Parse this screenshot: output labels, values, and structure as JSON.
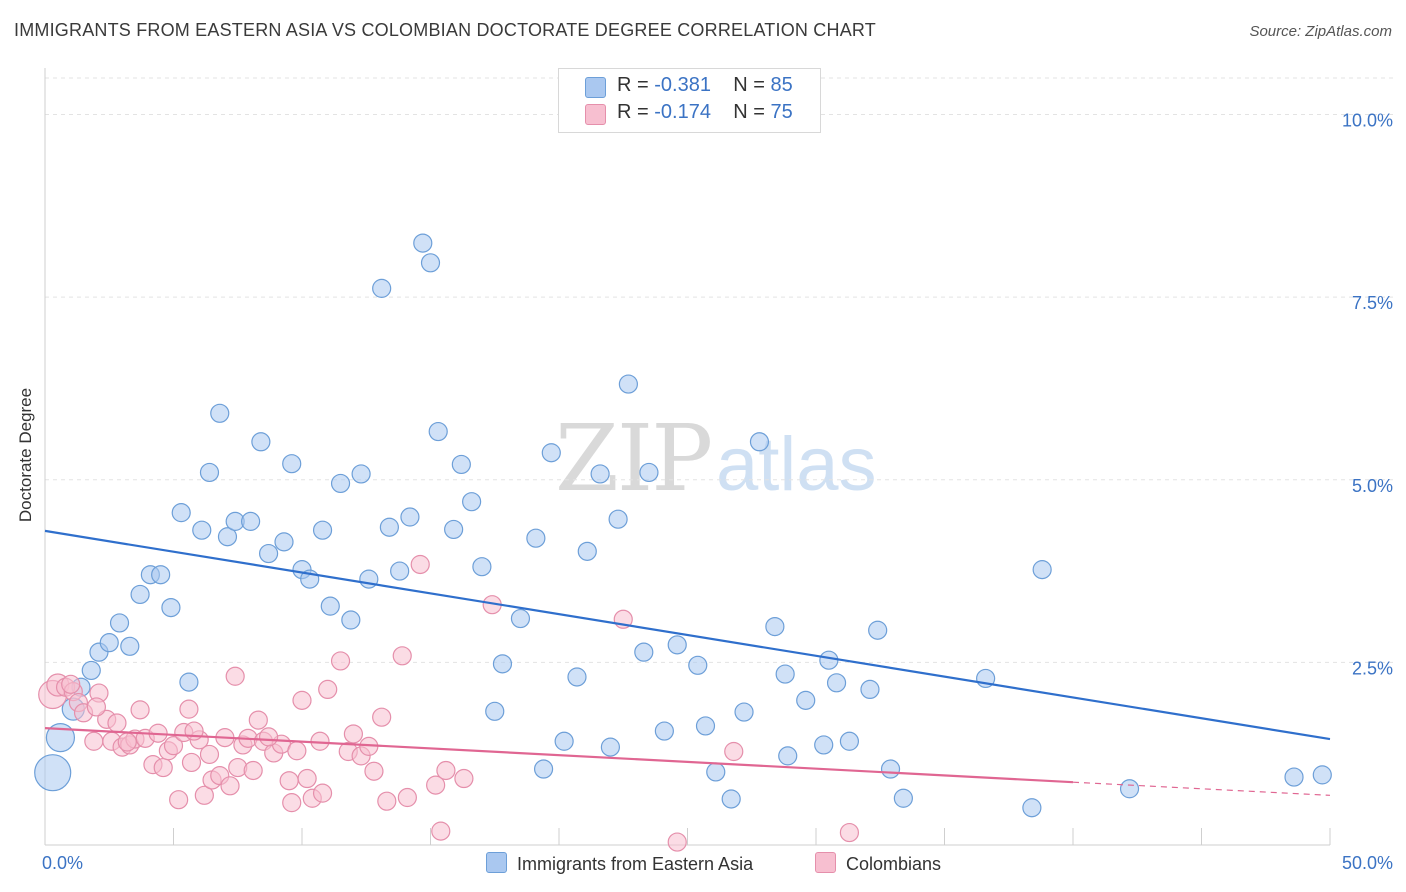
{
  "title": "IMMIGRANTS FROM EASTERN ASIA VS COLOMBIAN DOCTORATE DEGREE CORRELATION CHART",
  "source": "Source: ZipAtlas.com",
  "watermark": {
    "zip": "ZIP",
    "atlas": "atlas"
  },
  "colors": {
    "blue_fill": "#aac8f0",
    "blue_stroke": "#6d9fd8",
    "blue_line": "#2f6fcc",
    "pink_fill": "#f7bfd0",
    "pink_stroke": "#e58fab",
    "pink_line": "#e06692",
    "axis_label": "#3b73c4",
    "grid": "#e3e3e3"
  },
  "legend": {
    "series1": {
      "r_label": "R =",
      "r_value": "-0.381",
      "n_label": "N =",
      "n_value": "85"
    },
    "series2": {
      "r_label": "R =",
      "r_value": "-0.174",
      "n_label": "N =",
      "n_value": "75"
    }
  },
  "bottom_legend": {
    "series1": "Immigrants from Eastern Asia",
    "series2": "Colombians"
  },
  "chart_data": {
    "type": "scatter",
    "title": "IMMIGRANTS FROM EASTERN ASIA VS COLOMBIAN DOCTORATE DEGREE CORRELATION CHART",
    "xlabel": "",
    "ylabel": "Doctorate Degree",
    "xlim": [
      0,
      50
    ],
    "ylim": [
      0,
      10.5
    ],
    "x_tick_labels": [
      {
        "value": 0,
        "label": "0.0%"
      },
      {
        "value": 50,
        "label": "50.0%"
      }
    ],
    "y_tick_labels": [
      {
        "value": 2.5,
        "label": "2.5%"
      },
      {
        "value": 5.0,
        "label": "5.0%"
      },
      {
        "value": 7.5,
        "label": "7.5%"
      },
      {
        "value": 10.0,
        "label": "10.0%"
      }
    ],
    "grid": true,
    "legend_position": "top-center",
    "series": [
      {
        "name": "Immigrants from Eastern Asia",
        "color": "#aac8f0",
        "trend": {
          "x": [
            0,
            50
          ],
          "y": [
            4.3,
            1.45
          ]
        },
        "points": [
          [
            0.3,
            0.99,
            18
          ],
          [
            0.6,
            1.47,
            14
          ],
          [
            1.1,
            1.86,
            11
          ],
          [
            1.4,
            2.16,
            9
          ],
          [
            1.8,
            2.39,
            9
          ],
          [
            2.1,
            2.64,
            9
          ],
          [
            2.5,
            2.77,
            9
          ],
          [
            2.9,
            3.04,
            9
          ],
          [
            3.3,
            2.72,
            9
          ],
          [
            3.7,
            3.43,
            9
          ],
          [
            4.1,
            3.7,
            9
          ],
          [
            4.5,
            3.7,
            9
          ],
          [
            4.9,
            3.25,
            9
          ],
          [
            5.3,
            4.55,
            9
          ],
          [
            5.6,
            2.23,
            9
          ],
          [
            6.1,
            4.31,
            9
          ],
          [
            6.4,
            5.1,
            9
          ],
          [
            6.8,
            5.91,
            9
          ],
          [
            7.1,
            4.22,
            9
          ],
          [
            7.4,
            4.43,
            9
          ],
          [
            8.0,
            4.43,
            9
          ],
          [
            8.4,
            5.52,
            9
          ],
          [
            8.7,
            3.99,
            9
          ],
          [
            9.3,
            4.15,
            9
          ],
          [
            9.6,
            5.22,
            9
          ],
          [
            10.0,
            3.77,
            9
          ],
          [
            10.3,
            3.64,
            9
          ],
          [
            10.8,
            4.31,
            9
          ],
          [
            11.1,
            3.27,
            9
          ],
          [
            11.5,
            4.95,
            9
          ],
          [
            11.9,
            3.08,
            9
          ],
          [
            12.3,
            5.08,
            9
          ],
          [
            12.6,
            3.64,
            9
          ],
          [
            13.1,
            7.62,
            9
          ],
          [
            13.4,
            4.35,
            9
          ],
          [
            13.8,
            3.75,
            9
          ],
          [
            14.2,
            4.49,
            9
          ],
          [
            14.7,
            8.24,
            9
          ],
          [
            15.0,
            7.97,
            9
          ],
          [
            15.3,
            5.66,
            9
          ],
          [
            15.9,
            4.32,
            9
          ],
          [
            16.2,
            5.21,
            9
          ],
          [
            16.6,
            4.7,
            9
          ],
          [
            17.0,
            3.81,
            9
          ],
          [
            17.5,
            1.83,
            9
          ],
          [
            17.8,
            2.48,
            9
          ],
          [
            18.5,
            3.1,
            9
          ],
          [
            19.1,
            4.2,
            9
          ],
          [
            19.4,
            1.04,
            9
          ],
          [
            19.7,
            5.37,
            9
          ],
          [
            20.2,
            1.42,
            9
          ],
          [
            20.7,
            2.3,
            9
          ],
          [
            21.1,
            4.02,
            9
          ],
          [
            21.6,
            5.08,
            9
          ],
          [
            22.0,
            1.34,
            9
          ],
          [
            22.3,
            4.46,
            9
          ],
          [
            22.7,
            6.31,
            9
          ],
          [
            23.3,
            2.64,
            9
          ],
          [
            23.5,
            5.1,
            9
          ],
          [
            24.1,
            1.56,
            9
          ],
          [
            24.6,
            2.74,
            9
          ],
          [
            25.4,
            2.46,
            9
          ],
          [
            25.7,
            1.63,
            9
          ],
          [
            26.1,
            1.0,
            9
          ],
          [
            26.7,
            0.63,
            9
          ],
          [
            27.2,
            1.82,
            9
          ],
          [
            27.8,
            5.52,
            9
          ],
          [
            28.4,
            2.99,
            9
          ],
          [
            28.8,
            2.34,
            9
          ],
          [
            28.9,
            1.22,
            9
          ],
          [
            29.6,
            1.98,
            9
          ],
          [
            30.3,
            1.37,
            9
          ],
          [
            30.5,
            2.53,
            9
          ],
          [
            30.8,
            2.22,
            9
          ],
          [
            31.3,
            1.42,
            9
          ],
          [
            32.1,
            2.13,
            9
          ],
          [
            32.4,
            2.94,
            9
          ],
          [
            32.9,
            1.04,
            9
          ],
          [
            33.4,
            0.64,
            9
          ],
          [
            36.6,
            2.28,
            9
          ],
          [
            38.4,
            0.51,
            9
          ],
          [
            38.8,
            3.77,
            9
          ],
          [
            42.2,
            0.77,
            9
          ],
          [
            48.6,
            0.93,
            9
          ],
          [
            49.7,
            0.96,
            9
          ]
        ]
      },
      {
        "name": "Colombians",
        "color": "#f7bfd0",
        "trend": {
          "x": [
            0,
            40
          ],
          "y": [
            1.6,
            0.86
          ]
        },
        "trend_extension": {
          "x": [
            40,
            50
          ],
          "y": [
            0.86,
            0.68
          ]
        },
        "points": [
          [
            0.3,
            2.06,
            14
          ],
          [
            0.5,
            2.19,
            11
          ],
          [
            0.8,
            2.16,
            9
          ],
          [
            1.1,
            2.1,
            9
          ],
          [
            1.3,
            1.95,
            9
          ],
          [
            1.5,
            1.81,
            9
          ],
          [
            1.9,
            1.42,
            9
          ],
          [
            2.1,
            2.08,
            9
          ],
          [
            2.4,
            1.72,
            9
          ],
          [
            2.6,
            1.42,
            9
          ],
          [
            2.8,
            1.67,
            9
          ],
          [
            3.0,
            1.34,
            9
          ],
          [
            3.3,
            1.37,
            9
          ],
          [
            3.5,
            1.45,
            9
          ],
          [
            3.7,
            1.85,
            9
          ],
          [
            3.9,
            1.46,
            9
          ],
          [
            4.2,
            1.1,
            9
          ],
          [
            4.4,
            1.53,
            9
          ],
          [
            4.6,
            1.06,
            9
          ],
          [
            4.8,
            1.29,
            9
          ],
          [
            5.0,
            1.36,
            9
          ],
          [
            5.2,
            0.62,
            9
          ],
          [
            5.4,
            1.54,
            9
          ],
          [
            5.6,
            1.86,
            9
          ],
          [
            5.7,
            1.13,
            9
          ],
          [
            6.0,
            1.44,
            9
          ],
          [
            6.2,
            0.68,
            9
          ],
          [
            6.4,
            1.24,
            9
          ],
          [
            6.5,
            0.89,
            9
          ],
          [
            6.8,
            0.95,
            9
          ],
          [
            7.0,
            1.47,
            9
          ],
          [
            7.2,
            0.81,
            9
          ],
          [
            7.4,
            2.31,
            9
          ],
          [
            7.5,
            1.06,
            9
          ],
          [
            7.7,
            1.37,
            9
          ],
          [
            7.9,
            1.46,
            9
          ],
          [
            8.1,
            1.02,
            9
          ],
          [
            8.3,
            1.71,
            9
          ],
          [
            8.5,
            1.42,
            9
          ],
          [
            8.9,
            1.26,
            9
          ],
          [
            9.2,
            1.38,
            9
          ],
          [
            9.5,
            0.88,
            9
          ],
          [
            9.6,
            0.58,
            9
          ],
          [
            9.8,
            1.29,
            9
          ],
          [
            10.0,
            1.98,
            9
          ],
          [
            10.2,
            0.91,
            9
          ],
          [
            10.4,
            0.64,
            9
          ],
          [
            10.7,
            1.42,
            9
          ],
          [
            10.8,
            0.71,
            9
          ],
          [
            11.0,
            2.13,
            9
          ],
          [
            11.5,
            2.52,
            9
          ],
          [
            11.8,
            1.28,
            9
          ],
          [
            12.0,
            1.52,
            9
          ],
          [
            12.3,
            1.22,
            9
          ],
          [
            12.6,
            1.35,
            9
          ],
          [
            12.8,
            1.01,
            9
          ],
          [
            13.1,
            1.75,
            9
          ],
          [
            13.3,
            0.6,
            9
          ],
          [
            13.9,
            2.59,
            9
          ],
          [
            14.1,
            0.65,
            9
          ],
          [
            14.6,
            3.84,
            9
          ],
          [
            15.2,
            0.82,
            9
          ],
          [
            15.4,
            0.19,
            9
          ],
          [
            15.6,
            1.02,
            9
          ],
          [
            16.3,
            0.91,
            9
          ],
          [
            17.4,
            3.29,
            9
          ],
          [
            22.5,
            3.09,
            9
          ],
          [
            24.6,
            0.04,
            9
          ],
          [
            26.8,
            1.28,
            9
          ],
          [
            31.3,
            0.17,
            9
          ],
          [
            1.0,
            2.2,
            9
          ],
          [
            2.0,
            1.89,
            9
          ],
          [
            3.2,
            1.41,
            9
          ],
          [
            5.8,
            1.56,
            9
          ],
          [
            8.7,
            1.48,
            9
          ]
        ]
      }
    ]
  }
}
